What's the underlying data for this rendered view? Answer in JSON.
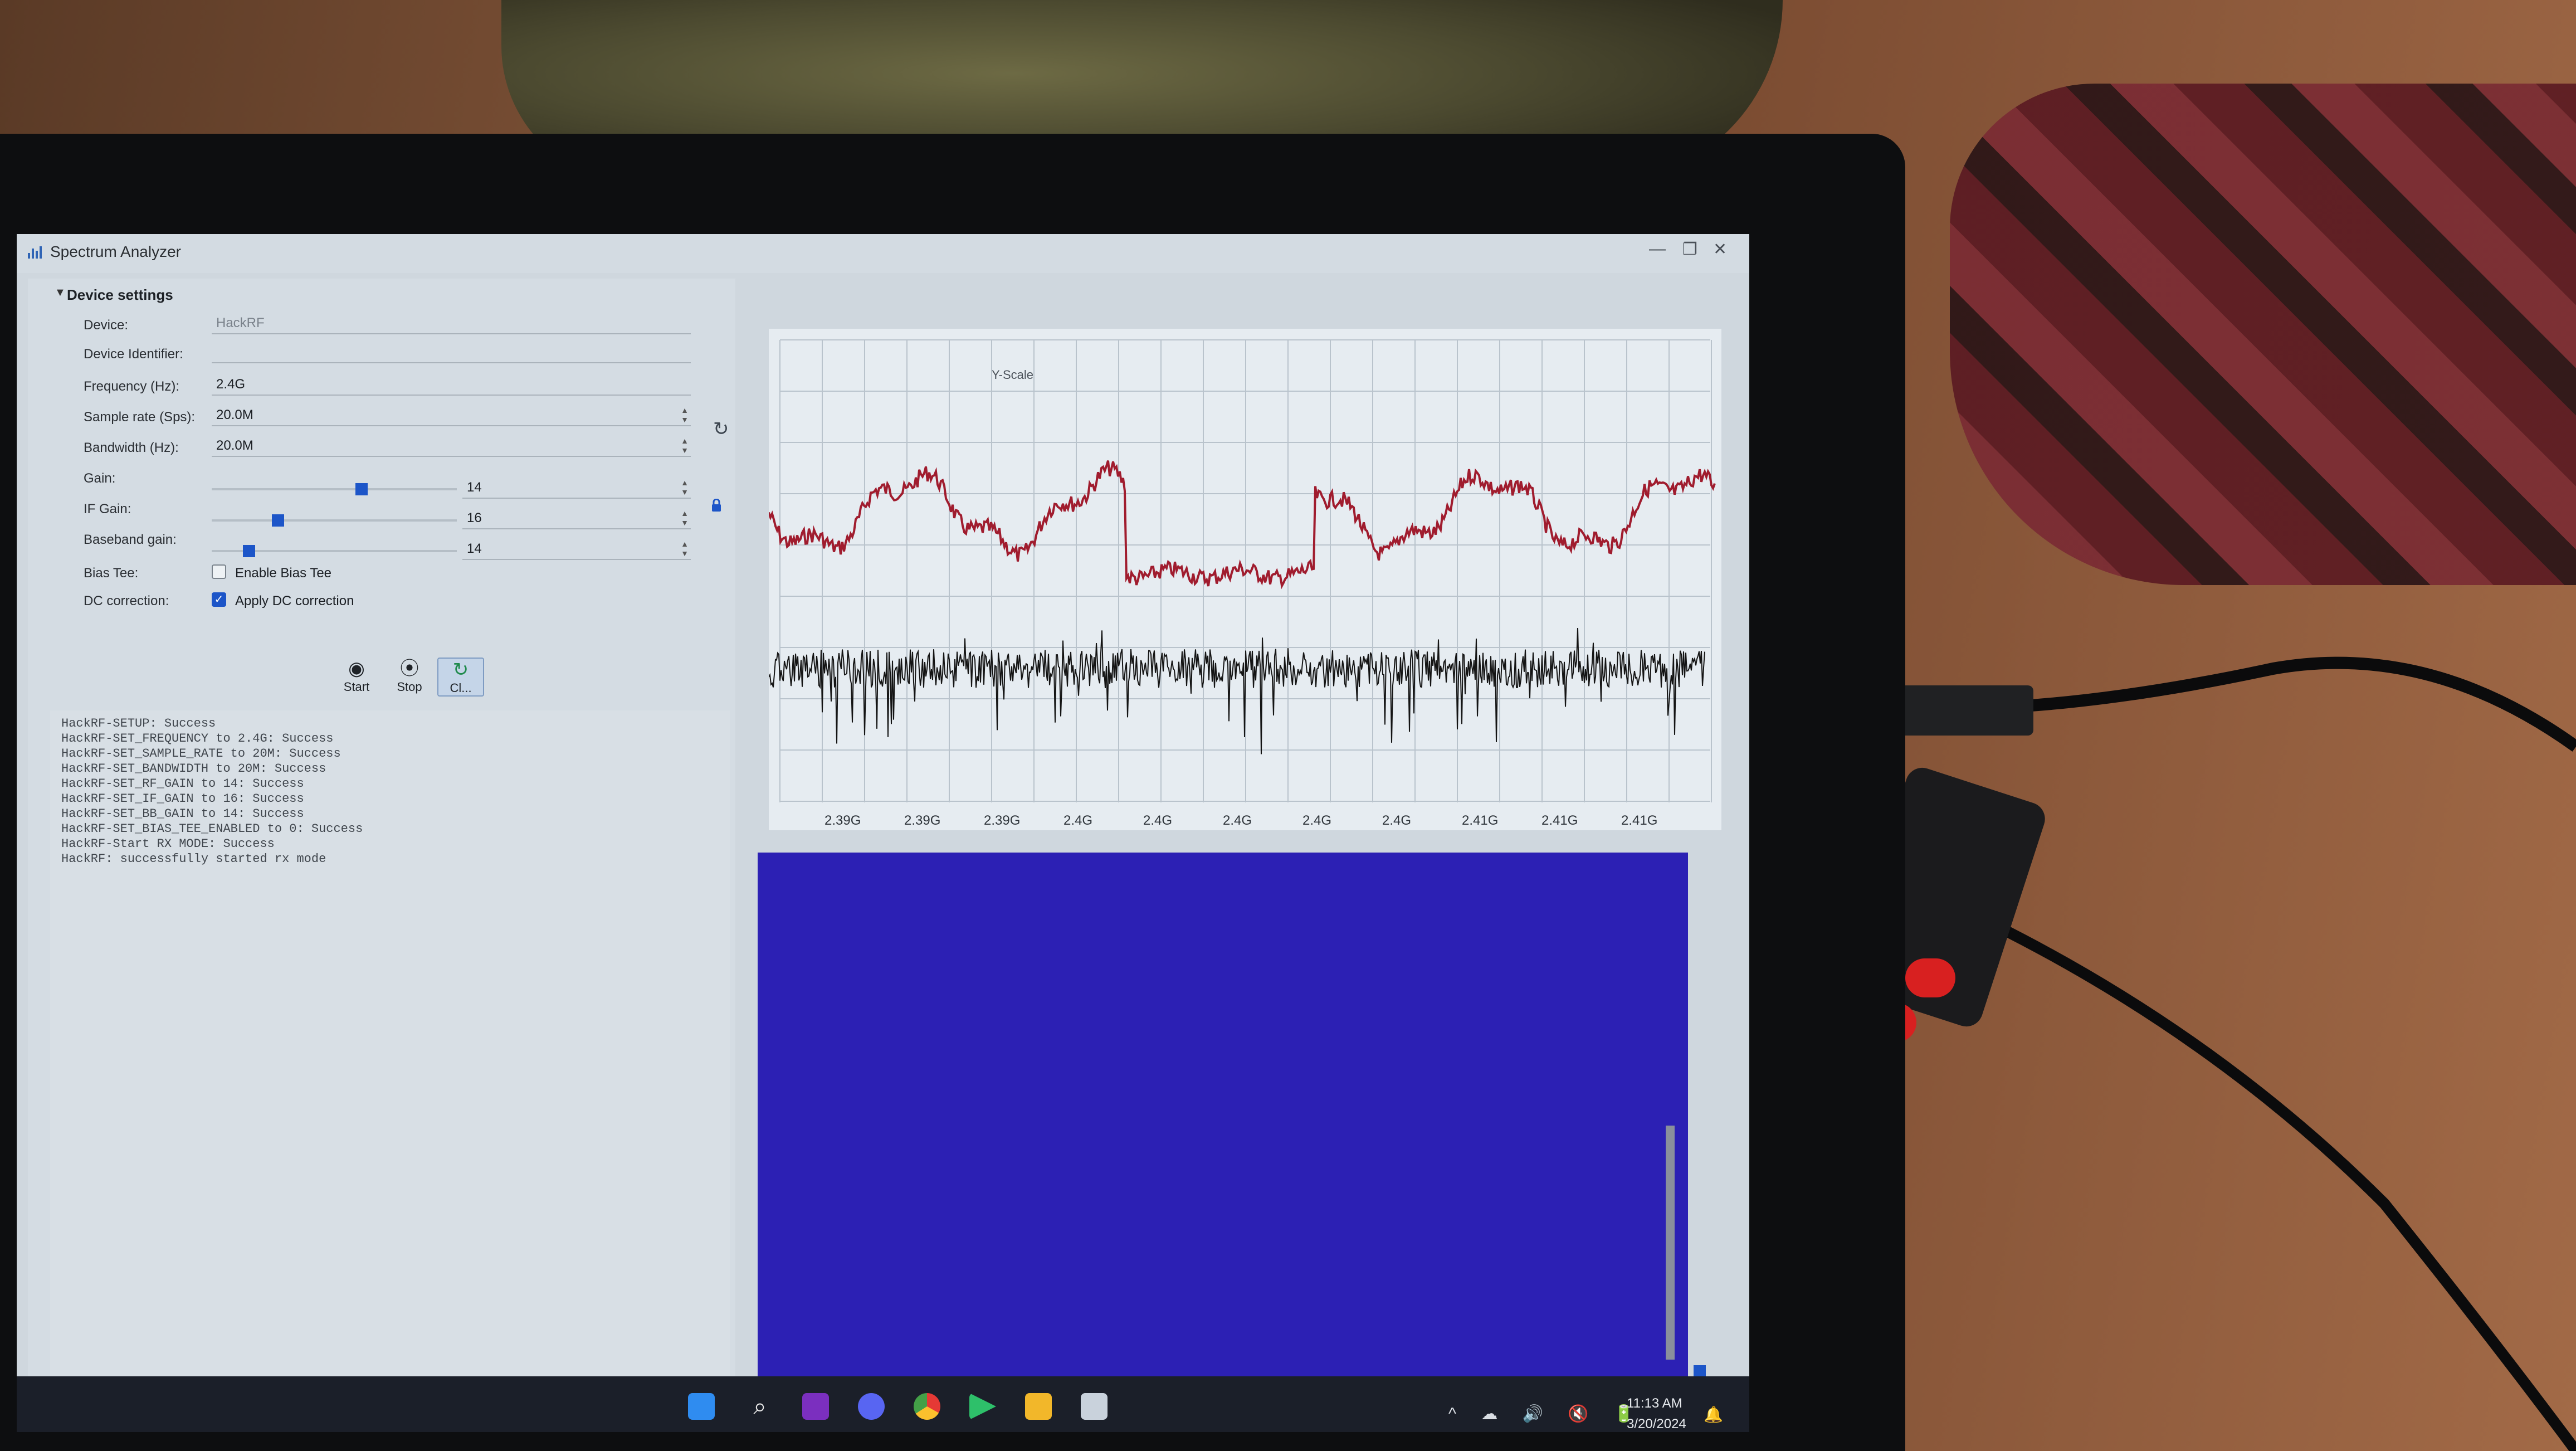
{
  "window": {
    "title": "Spectrum Analyzer",
    "minimize_glyph": "—",
    "restore_glyph": "❐",
    "close_glyph": "✕"
  },
  "settings": {
    "header": "Device settings",
    "device_label": "Device:",
    "device_value": "HackRF",
    "identifier_label": "Device Identifier:",
    "identifier_value": "",
    "frequency_label": "Frequency (Hz):",
    "frequency_value": "2.4G",
    "sample_rate_label": "Sample rate (Sps):",
    "sample_rate_value": "20.0M",
    "bandwidth_label": "Bandwidth (Hz):",
    "bandwidth_value": "20.0M",
    "gain_label": "Gain:",
    "gain_value": "14",
    "gain_level": 0.6,
    "if_gain_label": "IF Gain:",
    "if_gain_value": "16",
    "if_gain_level": 0.25,
    "baseband_gain_label": "Baseband gain:",
    "baseband_gain_value": "14",
    "baseband_gain_level": 0.13,
    "bias_tee_label": "Bias Tee:",
    "bias_tee_check_label": "Enable Bias Tee",
    "bias_tee_enabled": false,
    "dc_label": "DC correction:",
    "dc_check_label": "Apply DC correction",
    "dc_enabled": true
  },
  "controls": {
    "start_label": "Start",
    "stop_label": "Stop",
    "clear_label": "Cl..."
  },
  "log": [
    "HackRF-SETUP: Success",
    "HackRF-SET_FREQUENCY to 2.4G: Success",
    "HackRF-SET_SAMPLE_RATE to 20M: Success",
    "HackRF-SET_BANDWIDTH to 20M: Success",
    "HackRF-SET_RF_GAIN to 14: Success",
    "HackRF-SET_IF_GAIN to 16: Success",
    "HackRF-SET_BB_GAIN to 14: Success",
    "HackRF-SET_BIAS_TEE_ENABLED to 0: Success",
    "HackRF-Start RX MODE: Success",
    "HackRF: successfully started rx mode"
  ],
  "plot": {
    "yscale_label": "Y-Scale",
    "x_tick_labels": [
      "2.39G",
      "2.39G",
      "2.39G",
      "2.4G",
      "2.4G",
      "2.4G",
      "2.4G",
      "2.4G",
      "2.41G",
      "2.41G",
      "2.41G"
    ],
    "trace_colors": {
      "peak": "#a01c2e",
      "live": "#141414"
    },
    "waterfall_color": "#2c20b4"
  },
  "taskbar": {
    "apps": [
      "windows-start",
      "search",
      "onenote",
      "discord",
      "chrome",
      "media-player",
      "file-explorer",
      "spectrum-analyzer"
    ],
    "time": "11:13 AM",
    "date": "3/20/2024",
    "tray_icons": [
      "^",
      "☁",
      "🔊",
      "🔇",
      "🔋"
    ]
  }
}
